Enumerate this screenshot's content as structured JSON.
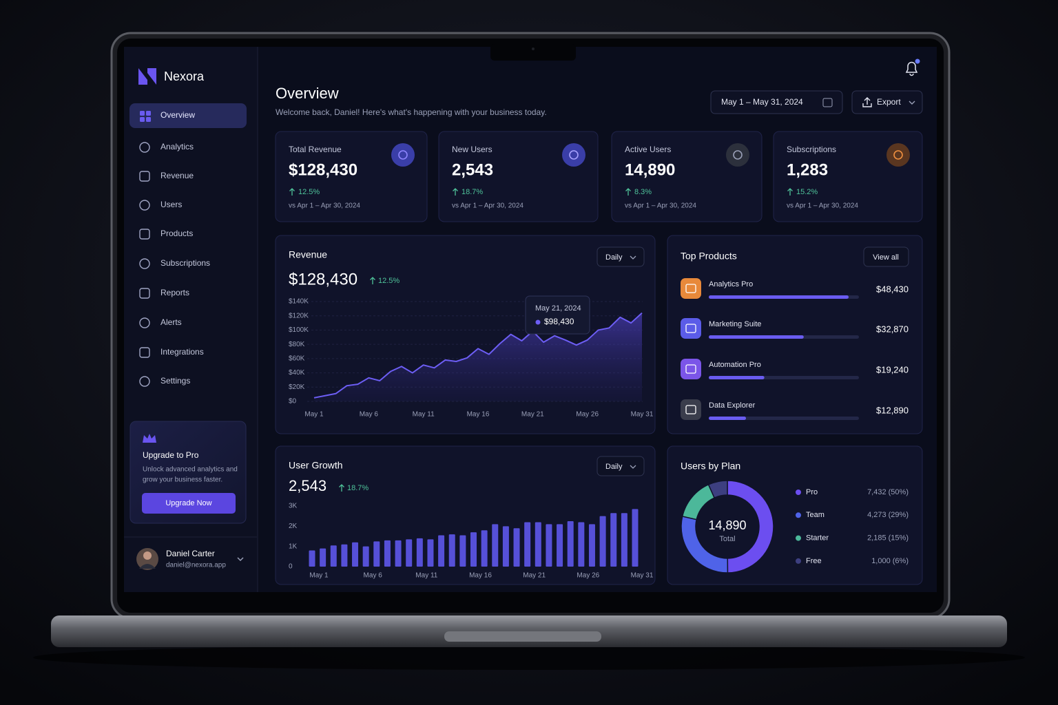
{
  "brand": "Nexora",
  "nav": {
    "items": [
      "Overview",
      "Analytics",
      "Revenue",
      "Users",
      "Products",
      "Subscriptions",
      "Reports",
      "Alerts",
      "Integrations",
      "Settings"
    ],
    "active": 0
  },
  "upgrade": {
    "title": "Upgrade to Pro",
    "description": [
      "Unlock advanced analytics and",
      "grow your business faster."
    ],
    "button": "Upgrade Now"
  },
  "user": {
    "name": "Daniel Carter",
    "email": "daniel@nexora.app"
  },
  "header": {
    "title": "Overview",
    "subtitle": "Welcome back, Daniel! Here's what's happening with your business today.",
    "date_range": "May 1 – May 31, 2024",
    "export": "Export"
  },
  "kpis": [
    {
      "label": "Total Revenue",
      "value": "$128,430",
      "change": "12.5%",
      "comparison": "vs Apr 1 – Apr 30, 2024"
    },
    {
      "label": "New Users",
      "value": "2,543",
      "change": "18.7%",
      "comparison": "vs Apr 1 – Apr 30, 2024"
    },
    {
      "label": "Active Users",
      "value": "14,890",
      "change": "8.3%",
      "comparison": "vs Apr 1 – Apr 30, 2024"
    },
    {
      "label": "Subscriptions",
      "value": "1,283",
      "change": "15.2%",
      "comparison": "vs Apr 1 – Apr 30, 2024"
    }
  ],
  "chart_data": [
    {
      "type": "area",
      "title": "Revenue",
      "total": "$128,430",
      "change": "12.5%",
      "period": "Daily",
      "categories": [
        "May 1",
        null,
        null,
        null,
        null,
        "May 6",
        null,
        null,
        null,
        null,
        "May 11",
        null,
        null,
        null,
        null,
        "May 16",
        null,
        null,
        null,
        null,
        "May 21",
        null,
        null,
        null,
        null,
        "May 26",
        null,
        null,
        null,
        null,
        "May 31"
      ],
      "values": [
        5000,
        8000,
        11000,
        22000,
        24000,
        33000,
        29000,
        42000,
        49000,
        40000,
        51000,
        47000,
        58000,
        56000,
        61000,
        74000,
        66000,
        81000,
        94000,
        85000,
        98430,
        83000,
        92000,
        86000,
        79000,
        86000,
        100000,
        103000,
        118000,
        110000,
        124000
      ],
      "color": "#6d5ef5",
      "ylim": [
        0,
        140000
      ],
      "yticks": [
        {
          "value": 0,
          "label": "$0"
        },
        {
          "value": 20000,
          "label": "$20K"
        },
        {
          "value": 40000,
          "label": "$40K"
        },
        {
          "value": 60000,
          "label": "$60K"
        },
        {
          "value": 80000,
          "label": "$80K"
        },
        {
          "value": 100000,
          "label": "$100K"
        },
        {
          "value": 120000,
          "label": "$120K"
        },
        {
          "value": 140000,
          "label": "$140K"
        }
      ],
      "grid": true,
      "tooltip": {
        "x": "May 21, 2024",
        "value": 98430,
        "value_label": "$98,430"
      }
    },
    {
      "type": "progress",
      "title": "Top Products",
      "button": "View all",
      "categories": [
        "Analytics Pro",
        "Marketing Suite",
        "Automation Pro",
        "Data Explorer"
      ],
      "values": [
        48430,
        32870,
        19240,
        12890
      ],
      "value_labels": [
        "$48,430",
        "$32,870",
        "$19,240",
        "$12,890"
      ],
      "xlim": [
        0,
        52000
      ],
      "color": "#6a5cf0",
      "icon_colors": [
        "#e8893a",
        "#5b5ce8",
        "#7b55e8",
        "#3a3d4c"
      ]
    },
    {
      "type": "bar",
      "title": "User Growth",
      "total": "2,543",
      "change": "18.7%",
      "period": "Daily",
      "categories": [
        "May 1",
        null,
        null,
        null,
        null,
        "May 6",
        null,
        null,
        null,
        null,
        "May 11",
        null,
        null,
        null,
        null,
        "May 16",
        null,
        null,
        null,
        null,
        "May 21",
        null,
        null,
        null,
        null,
        "May 26",
        null,
        null,
        null,
        null,
        "May 31"
      ],
      "values": [
        800,
        900,
        1050,
        1100,
        1200,
        1000,
        1250,
        1300,
        1300,
        1350,
        1400,
        1350,
        1550,
        1600,
        1550,
        1700,
        1800,
        2100,
        2000,
        1900,
        2200,
        2200,
        2100,
        2100,
        2250,
        2200,
        2100,
        2500,
        2650,
        2650,
        2850
      ],
      "color": "#5650d8",
      "ylim": [
        0,
        3000
      ],
      "yticks": [
        0,
        {
          "value": 1000,
          "label": "1K"
        },
        {
          "value": 2000,
          "label": "2K"
        },
        {
          "value": 3000,
          "label": "3K"
        }
      ],
      "grid": false
    },
    {
      "type": "donut",
      "title": "Users by Plan",
      "center_value": "14,890",
      "center_label": "Total",
      "categories": [
        "Pro",
        "Team",
        "Starter",
        "Free"
      ],
      "values": [
        7432,
        4273,
        2185,
        1000
      ],
      "value_labels": [
        "7,432 (50%)",
        "4,273 (29%)",
        "2,185 (15%)",
        "1,000 (6%)"
      ],
      "colors": [
        "#6c4ef0",
        "#4f63e8",
        "#4cb89a",
        "#3d3f80"
      ]
    }
  ]
}
